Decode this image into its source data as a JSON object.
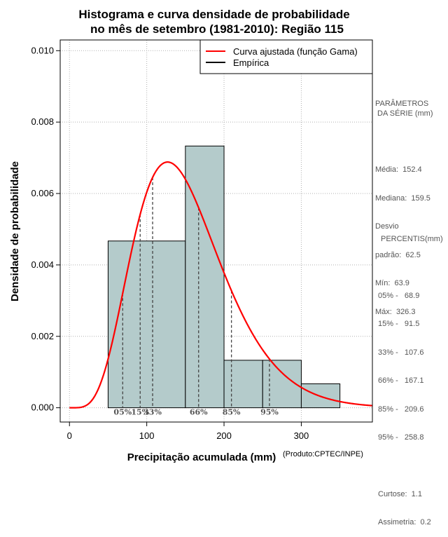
{
  "chart_data": {
    "type": "histogram",
    "title_line1": "Histograma e curva densidade de probabilidade",
    "title_line2": "no mês de setembro (1981-2010): Região 115",
    "xlabel": "Precipitação acumulada (mm)",
    "ylabel": "Densidade de probabilidade",
    "credit": "(Produto:CPTEC/INPE)",
    "xlim": [
      -12,
      392
    ],
    "ylim": [
      -0.0004,
      0.0103
    ],
    "x_ticks": [
      0,
      100,
      200,
      300
    ],
    "x_tick_labels": [
      "0",
      "100",
      "200",
      "300"
    ],
    "y_ticks": [
      0,
      0.002,
      0.004,
      0.006,
      0.008,
      0.01
    ],
    "y_tick_labels": [
      "0.000",
      "0.002",
      "0.004",
      "0.006",
      "0.008",
      "0.010"
    ],
    "grid": true,
    "bins": [
      {
        "start": 50,
        "end": 150,
        "density": 0.00467
      },
      {
        "start": 150,
        "end": 200,
        "density": 0.00733
      },
      {
        "start": 200,
        "end": 250,
        "density": 0.00133
      },
      {
        "start": 250,
        "end": 300,
        "density": 0.00133
      },
      {
        "start": 300,
        "end": 350,
        "density": 0.00067
      }
    ],
    "bar_color": "#b4cbcb",
    "gamma_fit": {
      "shape": 5.96,
      "scale": 25.6,
      "color": "#ff0000"
    },
    "percentile_markers": [
      {
        "label": "05%",
        "x": 68.9
      },
      {
        "label": "15%",
        "x": 91.5
      },
      {
        "label": "33%",
        "x": 107.6
      },
      {
        "label": "66%",
        "x": 167.1
      },
      {
        "label": "85%",
        "x": 209.6
      },
      {
        "label": "95%",
        "x": 258.8
      }
    ],
    "legend": {
      "position": "top-right",
      "entries": [
        {
          "label": "Curva ajustada (função Gama)",
          "color": "#ff0000"
        },
        {
          "label": "Empírica",
          "color": "#000000"
        }
      ]
    }
  },
  "stats": {
    "heading": "PARÂMETROS\n DA SÉRIE (mm)",
    "rows": [
      "Média:  152.4",
      "Mediana:  159.5",
      "Desvio",
      "padrão:  62.5",
      "Mín:  63.9",
      "Máx:  326.3"
    ]
  },
  "percentis": {
    "heading": "PERCENTIS(mm)",
    "rows": [
      "05% -   68.9",
      "15% -   91.5",
      "33% -   107.6",
      "66% -   167.1",
      "85% -   209.6",
      "95% -   258.8"
    ],
    "extra_rows": [
      "Curtose:  1.1",
      "Assimetria:  0.2"
    ]
  }
}
